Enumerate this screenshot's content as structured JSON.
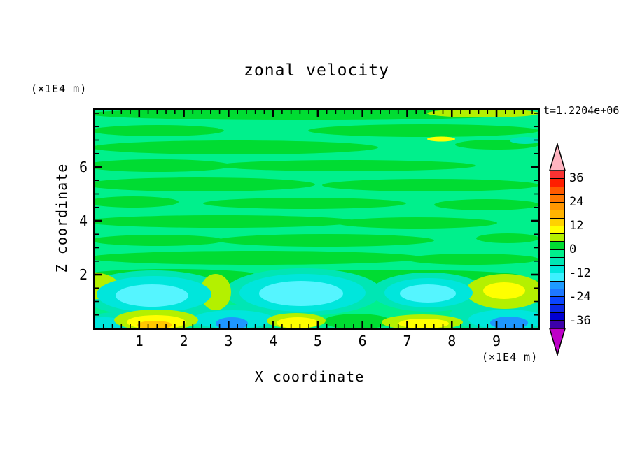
{
  "palette": {
    "spring": "#00F08C",
    "green": "#00DC32",
    "chartreuse": "#B4F000",
    "yellow": "#FFFF00",
    "gold": "#FFC800",
    "aqua": "#00E6B4",
    "turquoise": "#00E6DC",
    "lightcyan": "#55F5FF",
    "dodger": "#1E96FF",
    "pink": "#FFB4C0",
    "magenta": "#BE00C8",
    "axis": "#000000"
  },
  "chart_data": {
    "type": "heatmap",
    "variant": "filled-contour",
    "title": "zonal velocity",
    "time_annotation": "t=1.2204e+06",
    "xlabel": "X coordinate",
    "x_unit": "(×1E4 m)",
    "ylabel": "Z coordinate",
    "y_unit": "(×1E4 m)",
    "xlim": [
      0,
      9.94
    ],
    "ylim": [
      0,
      8.13
    ],
    "x_major_ticks": [
      1,
      2,
      3,
      4,
      5,
      6,
      7,
      8,
      9
    ],
    "x_minor_step": 0.2,
    "y_major_ticks": [
      2,
      4,
      6
    ],
    "y_minor_step": 0.5,
    "grid": false,
    "contour_interval": 4,
    "value_range": [
      -40,
      40
    ],
    "colorbar": {
      "position": "right",
      "labels": [
        36,
        24,
        12,
        0,
        -12,
        -24,
        -36
      ],
      "over": {
        "meaning": ">40",
        "color": "#FFB4C0"
      },
      "under": {
        "meaning": "<-40",
        "color": "#BE00C8"
      },
      "segments": [
        {
          "hi": 40,
          "lo": 36,
          "color": "#FA3232"
        },
        {
          "hi": 36,
          "lo": 32,
          "color": "#FF1E00"
        },
        {
          "hi": 32,
          "lo": 28,
          "color": "#FF5A00"
        },
        {
          "hi": 28,
          "lo": 24,
          "color": "#FF7800"
        },
        {
          "hi": 24,
          "lo": 20,
          "color": "#FF9600"
        },
        {
          "hi": 20,
          "lo": 16,
          "color": "#FFB400"
        },
        {
          "hi": 16,
          "lo": 12,
          "color": "#FFD200"
        },
        {
          "hi": 12,
          "lo": 8,
          "color": "#FFFF00"
        },
        {
          "hi": 8,
          "lo": 4,
          "color": "#B4F000"
        },
        {
          "hi": 4,
          "lo": 0,
          "color": "#00DC32"
        },
        {
          "hi": 0,
          "lo": -4,
          "color": "#00F08C"
        },
        {
          "hi": -4,
          "lo": -8,
          "color": "#00E6B4"
        },
        {
          "hi": -8,
          "lo": -12,
          "color": "#00E6DC"
        },
        {
          "hi": -12,
          "lo": -16,
          "color": "#3CF0FF"
        },
        {
          "hi": -16,
          "lo": -20,
          "color": "#1E9BFF"
        },
        {
          "hi": -20,
          "lo": -24,
          "color": "#1E78FF"
        },
        {
          "hi": -24,
          "lo": -28,
          "color": "#0A46FF"
        },
        {
          "hi": -28,
          "lo": -32,
          "color": "#0A28E6"
        },
        {
          "hi": -32,
          "lo": -36,
          "color": "#0000D2"
        },
        {
          "hi": -36,
          "lo": -40,
          "color": "#3C00AA"
        }
      ]
    },
    "field_summary": "Interior (z>2) is dominated by wavy horizontal streaks alternating between the 0..4 (green) and -4..0 (spring green) bands; a boundary layer below z=2 contains stronger extrema.",
    "background_value_range": [
      -4,
      4
    ],
    "field_features": [
      {
        "x": 1.3,
        "z": 1.2,
        "value": -14,
        "appearance": "cyan minimum blob"
      },
      {
        "x": 4.7,
        "z": 1.2,
        "value": -14,
        "appearance": "cyan minimum blob"
      },
      {
        "x": 7.5,
        "z": 1.3,
        "value": -13,
        "appearance": "cyan minimum blob"
      },
      {
        "x": 0.1,
        "z": 1.6,
        "value": 6,
        "appearance": "yellow-green patch at left edge"
      },
      {
        "x": 2.7,
        "z": 1.2,
        "value": 6,
        "appearance": "yellow-green column between blobs"
      },
      {
        "x": 9.2,
        "z": 1.3,
        "value": 10,
        "appearance": "yellow-green maximum blob"
      },
      {
        "x": 1.3,
        "z": 0.15,
        "value": 18,
        "appearance": "yellow/amber near-surface maximum"
      },
      {
        "x": 4.5,
        "z": 0.1,
        "value": 12,
        "appearance": "yellow near-surface band"
      },
      {
        "x": 7.3,
        "z": 0.1,
        "value": 8,
        "appearance": "yellow-green near-surface band"
      },
      {
        "x": 3.1,
        "z": 0.15,
        "value": -18,
        "appearance": "blue near-surface minimum in cyan band"
      },
      {
        "x": 9.3,
        "z": 0.15,
        "value": -18,
        "appearance": "blue near-surface minimum in cyan band"
      },
      {
        "x": 8.2,
        "z": 8.0,
        "value": 6,
        "appearance": "thin yellow-green streak along top edge"
      }
    ]
  }
}
